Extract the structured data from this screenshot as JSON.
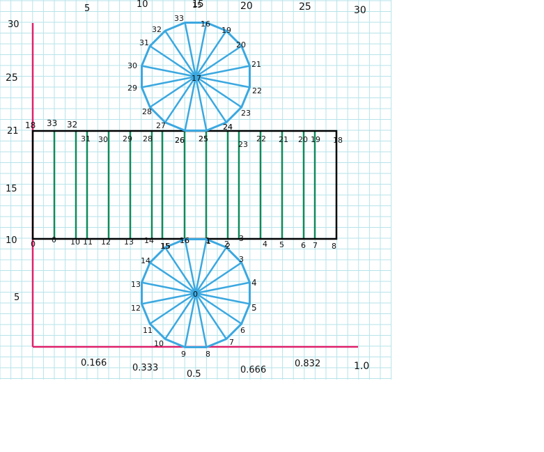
{
  "colors": {
    "grid": "#b6e3ea",
    "axis": "#e0206a",
    "rect": "#000000",
    "green": "#0f8a5a",
    "blue": "#3ba8e0",
    "text": "#111111"
  },
  "axes": {
    "x_ticks": [
      "5",
      "10",
      "15",
      "20",
      "25",
      "30"
    ],
    "y_ticks": [
      "30",
      "25",
      "21",
      "15",
      "10",
      "5"
    ],
    "fraction_labels": [
      "0.166",
      "0.333",
      "0.5",
      "0.666",
      "0.832",
      "1.0"
    ]
  },
  "rectangle": {
    "top_labels": [
      "18",
      "33",
      "32",
      "31",
      "30",
      "29",
      "28",
      "26",
      "25",
      "24",
      "23",
      "22",
      "21",
      "20",
      "19",
      "18"
    ],
    "bottom_labels": [
      "0",
      "0",
      "10",
      "11",
      "12",
      "13",
      "14",
      "15",
      "16",
      "1",
      "2",
      "3",
      "4",
      "5",
      "6",
      "7",
      "8"
    ]
  },
  "upper_polygon": {
    "center_label": "17",
    "vertex_labels": [
      "15",
      "16",
      "19",
      "20",
      "21",
      "22",
      "23",
      "24",
      "25",
      "26",
      "27",
      "28",
      "29",
      "30",
      "31",
      "32",
      "33"
    ]
  },
  "lower_polygon": {
    "center_label": "0",
    "vertex_labels": [
      "1",
      "2",
      "3",
      "4",
      "5",
      "6",
      "7",
      "8",
      "9",
      "10",
      "11",
      "12",
      "13",
      "14",
      "15",
      "16"
    ]
  }
}
